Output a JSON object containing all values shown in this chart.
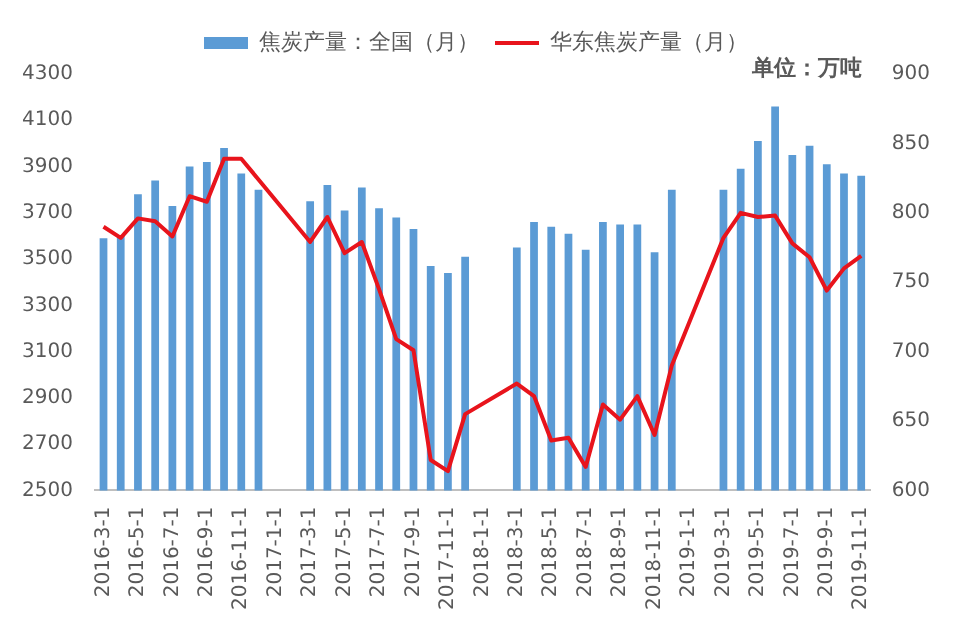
{
  "chart_data": {
    "type": "bar",
    "categories": [
      "2016-3-1",
      null,
      "2016-5-1",
      null,
      "2016-7-1",
      null,
      "2016-9-1",
      null,
      "2016-11-1",
      null,
      "2017-1-1",
      null,
      "2017-3-1",
      null,
      "2017-5-1",
      null,
      "2017-7-1",
      null,
      "2017-9-1",
      null,
      "2017-11-1",
      null,
      "2018-1-1",
      null,
      "2018-3-1",
      null,
      "2018-5-1",
      null,
      "2018-7-1",
      null,
      "2018-9-1",
      null,
      "2018-11-1",
      null,
      "2019-1-1",
      null,
      "2019-3-1",
      null,
      "2019-5-1",
      null,
      "2019-7-1",
      null,
      "2019-9-1",
      null,
      "2019-11-1"
    ],
    "series": [
      {
        "name": "焦炭产量：全国（月）",
        "color": "#5b9bd5",
        "values": [
          3590,
          3600,
          3780,
          3840,
          3730,
          3900,
          3920,
          3980,
          3870,
          3800,
          null,
          null,
          3750,
          3820,
          3710,
          3810,
          3720,
          3680,
          3630,
          3470,
          3440,
          3510,
          null,
          null,
          3550,
          3660,
          3640,
          3610,
          3540,
          3660,
          3650,
          3650,
          3530,
          3800,
          null,
          null,
          3800,
          3890,
          4010,
          4160,
          3950,
          3990,
          3910,
          3870,
          3860
        ]
      },
      {
        "name": "华东焦炭产量（月）",
        "type": "line",
        "axis": "y2",
        "color": "#e8141c",
        "values": [
          790,
          782,
          796,
          794,
          783,
          812,
          808,
          839,
          839,
          null,
          null,
          null,
          779,
          797,
          771,
          779,
          745,
          709,
          701,
          622,
          614,
          655,
          null,
          null,
          677,
          668,
          636,
          638,
          617,
          662,
          651,
          668,
          640,
          690,
          null,
          null,
          782,
          800,
          797,
          798,
          778,
          768,
          744,
          760,
          769
        ]
      }
    ],
    "ylim": [
      2500,
      4300
    ],
    "yticks": [
      2500,
      2700,
      2900,
      3100,
      3300,
      3500,
      3700,
      3900,
      4100,
      4300
    ],
    "y2lim": [
      600,
      900
    ],
    "y2ticks": [
      600,
      650,
      700,
      750,
      800,
      850,
      900
    ],
    "legend": "top",
    "grid": false,
    "marker": "none",
    "annotations": [
      "单位：万吨"
    ]
  }
}
